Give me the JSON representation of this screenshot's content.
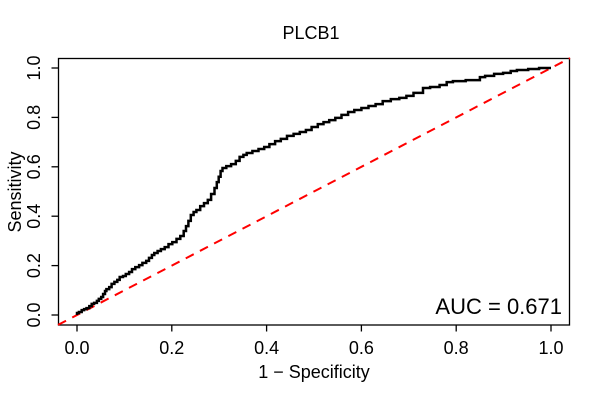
{
  "chart_data": {
    "type": "line",
    "subtype": "roc-curve",
    "title": "PLCB1",
    "xlabel": "1 − Specificity",
    "ylabel": "Sensitivity",
    "xlim": [
      0,
      1
    ],
    "ylim": [
      0,
      1
    ],
    "grid": false,
    "x_tick_values": [
      0.0,
      0.2,
      0.4,
      0.6,
      0.8,
      1.0
    ],
    "x_tick_labels": [
      "0.0",
      "0.2",
      "0.4",
      "0.6",
      "0.8",
      "1.0"
    ],
    "y_tick_values": [
      0.0,
      0.2,
      0.4,
      0.6,
      0.8,
      1.0
    ],
    "y_tick_labels": [
      "0.0",
      "0.2",
      "0.4",
      "0.6",
      "0.8",
      "1.0"
    ],
    "auc": 0.671,
    "annotation": "AUC = 0.671",
    "colors": {
      "roc_curve": "#000000",
      "diagonal": "#ff0000",
      "axis": "#000000"
    },
    "series": [
      {
        "name": "ROC curve",
        "color": "#000000",
        "style": "step",
        "points": [
          [
            0.0,
            0.0
          ],
          [
            0.004,
            0.008
          ],
          [
            0.01,
            0.012
          ],
          [
            0.015,
            0.02
          ],
          [
            0.02,
            0.024
          ],
          [
            0.026,
            0.028
          ],
          [
            0.031,
            0.036
          ],
          [
            0.036,
            0.045
          ],
          [
            0.042,
            0.049
          ],
          [
            0.046,
            0.057
          ],
          [
            0.051,
            0.065
          ],
          [
            0.055,
            0.073
          ],
          [
            0.059,
            0.085
          ],
          [
            0.062,
            0.097
          ],
          [
            0.068,
            0.105
          ],
          [
            0.073,
            0.113
          ],
          [
            0.079,
            0.126
          ],
          [
            0.085,
            0.134
          ],
          [
            0.09,
            0.142
          ],
          [
            0.097,
            0.154
          ],
          [
            0.103,
            0.158
          ],
          [
            0.11,
            0.166
          ],
          [
            0.116,
            0.174
          ],
          [
            0.123,
            0.186
          ],
          [
            0.131,
            0.194
          ],
          [
            0.138,
            0.202
          ],
          [
            0.146,
            0.211
          ],
          [
            0.152,
            0.219
          ],
          [
            0.158,
            0.231
          ],
          [
            0.163,
            0.243
          ],
          [
            0.17,
            0.251
          ],
          [
            0.177,
            0.259
          ],
          [
            0.185,
            0.267
          ],
          [
            0.193,
            0.275
          ],
          [
            0.201,
            0.287
          ],
          [
            0.21,
            0.295
          ],
          [
            0.218,
            0.308
          ],
          [
            0.225,
            0.32
          ],
          [
            0.23,
            0.34
          ],
          [
            0.235,
            0.36
          ],
          [
            0.24,
            0.381
          ],
          [
            0.246,
            0.405
          ],
          [
            0.252,
            0.417
          ],
          [
            0.26,
            0.425
          ],
          [
            0.268,
            0.441
          ],
          [
            0.276,
            0.453
          ],
          [
            0.283,
            0.466
          ],
          [
            0.29,
            0.49
          ],
          [
            0.295,
            0.514
          ],
          [
            0.299,
            0.538
          ],
          [
            0.303,
            0.56
          ],
          [
            0.307,
            0.583
          ],
          [
            0.315,
            0.595
          ],
          [
            0.325,
            0.603
          ],
          [
            0.335,
            0.611
          ],
          [
            0.343,
            0.624
          ],
          [
            0.351,
            0.64
          ],
          [
            0.358,
            0.648
          ],
          [
            0.37,
            0.656
          ],
          [
            0.383,
            0.664
          ],
          [
            0.395,
            0.672
          ],
          [
            0.406,
            0.68
          ],
          [
            0.418,
            0.692
          ],
          [
            0.43,
            0.704
          ],
          [
            0.443,
            0.713
          ],
          [
            0.457,
            0.725
          ],
          [
            0.47,
            0.733
          ],
          [
            0.483,
            0.741
          ],
          [
            0.495,
            0.749
          ],
          [
            0.508,
            0.761
          ],
          [
            0.52,
            0.773
          ],
          [
            0.532,
            0.781
          ],
          [
            0.545,
            0.789
          ],
          [
            0.558,
            0.798
          ],
          [
            0.572,
            0.81
          ],
          [
            0.585,
            0.822
          ],
          [
            0.6,
            0.83
          ],
          [
            0.615,
            0.838
          ],
          [
            0.63,
            0.846
          ],
          [
            0.645,
            0.854
          ],
          [
            0.662,
            0.866
          ],
          [
            0.68,
            0.874
          ],
          [
            0.695,
            0.879
          ],
          [
            0.71,
            0.887
          ],
          [
            0.73,
            0.899
          ],
          [
            0.745,
            0.919
          ],
          [
            0.765,
            0.923
          ],
          [
            0.78,
            0.931
          ],
          [
            0.793,
            0.943
          ],
          [
            0.82,
            0.947
          ],
          [
            0.85,
            0.951
          ],
          [
            0.861,
            0.963
          ],
          [
            0.88,
            0.968
          ],
          [
            0.899,
            0.976
          ],
          [
            0.915,
            0.98
          ],
          [
            0.928,
            0.988
          ],
          [
            0.952,
            0.992
          ],
          [
            0.975,
            0.996
          ],
          [
            1.0,
            1.0
          ]
        ]
      },
      {
        "name": "chance diagonal",
        "color": "#ff0000",
        "style": "dashed",
        "points": [
          [
            0,
            0
          ],
          [
            1,
            1
          ]
        ]
      }
    ]
  }
}
